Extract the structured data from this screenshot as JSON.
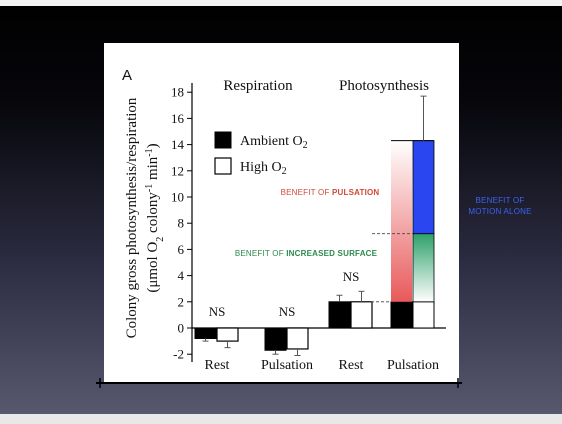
{
  "chart_data": {
    "type": "bar",
    "panel_label": "A",
    "ylabel_line1": "Colony gross photosynthesis/respiration",
    "ylabel_line2": "(μmol O",
    "ylabel_sub": "2",
    "ylabel_line2b": " colony",
    "ylabel_sup1": "-1",
    "ylabel_line2c": " min",
    "ylabel_sup2": "-1",
    "ylabel_line2d": ")",
    "ylim": [
      -3,
      19
    ],
    "yticks": [
      -2,
      0,
      2,
      4,
      6,
      8,
      10,
      12,
      14,
      16,
      18
    ],
    "groups": [
      "Respiration",
      "Photosynthesis"
    ],
    "categories": [
      "Rest",
      "Pulsation",
      "Rest",
      "Pulsation"
    ],
    "ns_labels": [
      "NS",
      "NS",
      "NS",
      ""
    ],
    "series": [
      {
        "name": "Ambient O2",
        "name_main": "Ambient O",
        "name_sub": "2",
        "color": "#000000",
        "values": [
          -0.8,
          -1.7,
          2.0,
          2.0
        ],
        "errors": [
          0.2,
          0.3,
          0.5,
          0
        ]
      },
      {
        "name": "High O2",
        "name_main": "High O",
        "name_sub": "2",
        "color": "#ffffff",
        "values": [
          -1.0,
          -1.6,
          2.0,
          14.3
        ],
        "errors": [
          0.5,
          0.5,
          0.8,
          3.4
        ]
      }
    ],
    "stack_segments": [
      {
        "from": 2.0,
        "to": 7.2,
        "color_top": "#2ea06a",
        "color_bottom": "#ffffff"
      },
      {
        "from": 7.2,
        "to": 14.3,
        "color_top": "#2a46f0",
        "color_bottom": "#2a46f0"
      }
    ],
    "dashed_levels": [
      2.0,
      7.2
    ],
    "annotations": [
      {
        "prefix": "BENEFIT OF ",
        "bold": "PULSATION",
        "color": "#d24836"
      },
      {
        "prefix": "BENEFIT OF ",
        "bold": "INCREASED SURFACE",
        "color": "#2d8a4a"
      },
      {
        "line1": "BENEFIT OF",
        "line2": "MOTION ALONE",
        "color": "#3b63f0"
      }
    ]
  }
}
